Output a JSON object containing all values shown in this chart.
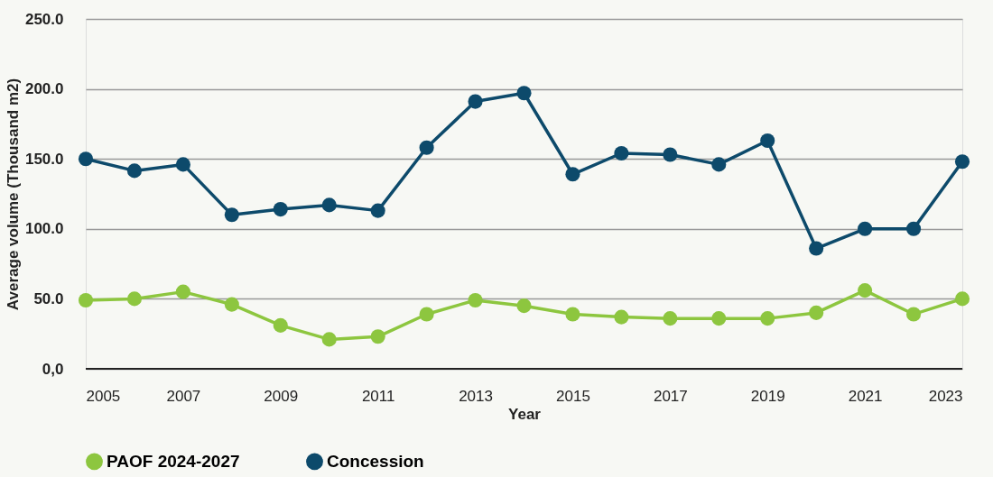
{
  "chart_data": {
    "type": "line",
    "xlabel": "Year",
    "ylabel": "Average volume (Thousand m2)",
    "x": [
      2005,
      2006,
      2007,
      2008,
      2009,
      2010,
      2011,
      2012,
      2013,
      2014,
      2015,
      2016,
      2017,
      2018,
      2019,
      2020,
      2021,
      2022,
      2023
    ],
    "series": [
      {
        "name": "PAOF 2024-2027",
        "color": "#8dc63f",
        "values": [
          49,
          50,
          55,
          46,
          31,
          21,
          23,
          39,
          49,
          45,
          39,
          37,
          36,
          36,
          36,
          40,
          56,
          39,
          50
        ]
      },
      {
        "name": "Concession",
        "color": "#0d4a6b",
        "values": [
          150,
          141.5,
          146,
          110,
          114,
          117,
          113,
          158,
          191,
          197,
          139,
          154,
          153,
          146,
          163,
          86,
          100,
          100,
          148
        ]
      }
    ],
    "xlim": [
      2005,
      2023
    ],
    "xticks": [
      2005,
      2007,
      2009,
      2011,
      2013,
      2015,
      2017,
      2019,
      2021,
      2023
    ],
    "ylim": [
      0,
      250
    ],
    "yticks": [
      {
        "value": 0,
        "label": "0,0"
      },
      {
        "value": 50,
        "label": "50.0"
      },
      {
        "value": 100,
        "label": "100.0"
      },
      {
        "value": 150,
        "label": "150.0"
      },
      {
        "value": 200,
        "label": "200.0"
      },
      {
        "value": 250,
        "label": "250.0"
      }
    ],
    "grid": "y",
    "legend": "bottom",
    "marker": "circle",
    "line_style": "solid"
  }
}
